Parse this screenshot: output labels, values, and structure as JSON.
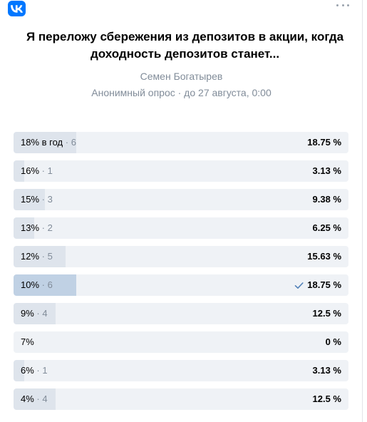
{
  "poll": {
    "title": "Я переложу сбережения из депозитов в акции, когда доходность депозитов станет...",
    "author": "Семен Богатырев",
    "meta": "Анонимный опрос · до 27 августа, 0:00",
    "options": [
      {
        "label": "18% в год",
        "count": "6",
        "percent": "18.75 %",
        "value": 18.75,
        "selected": false
      },
      {
        "label": "16%",
        "count": "1",
        "percent": "3.13 %",
        "value": 3.13,
        "selected": false
      },
      {
        "label": "15%",
        "count": "3",
        "percent": "9.38 %",
        "value": 9.38,
        "selected": false
      },
      {
        "label": "13%",
        "count": "2",
        "percent": "6.25 %",
        "value": 6.25,
        "selected": false
      },
      {
        "label": "12%",
        "count": "5",
        "percent": "15.63 %",
        "value": 15.63,
        "selected": false
      },
      {
        "label": "10%",
        "count": "6",
        "percent": "18.75 %",
        "value": 18.75,
        "selected": true
      },
      {
        "label": "9%",
        "count": "4",
        "percent": "12.5 %",
        "value": 12.5,
        "selected": false
      },
      {
        "label": "7%",
        "count": "",
        "percent": "0 %",
        "value": 0,
        "selected": false
      },
      {
        "label": "6%",
        "count": "1",
        "percent": "3.13 %",
        "value": 3.13,
        "selected": false
      },
      {
        "label": "4%",
        "count": "4",
        "percent": "12.5 %",
        "value": 12.5,
        "selected": false
      }
    ]
  },
  "icons": {
    "logo": "vk-logo-icon",
    "more": "more-dots-icon",
    "check": "checkmark-icon"
  },
  "colors": {
    "brand": "#0077ff",
    "bar_bg": "#eff2f6",
    "bar_fill": "#dee4ec",
    "bar_fill_selected": "#c0d1e4",
    "secondary_text": "#818c99",
    "check": "#5181b8"
  }
}
